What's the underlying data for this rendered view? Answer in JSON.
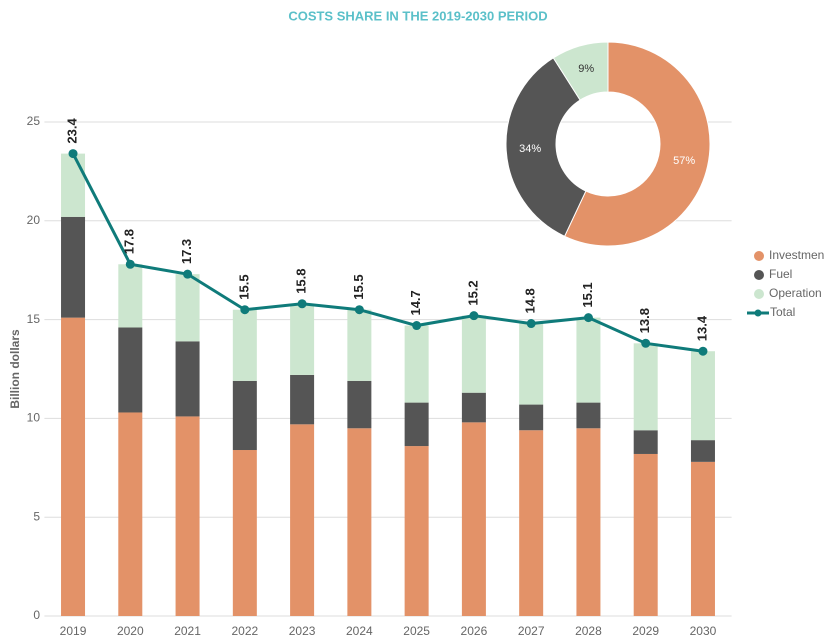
{
  "chart_data": [
    {
      "type": "stacked_bar_line",
      "title": "COSTS SHARE IN THE 2019-2030 PERIOD",
      "y_label": "Billion dollars",
      "categories": [
        "2019",
        "2020",
        "2021",
        "2022",
        "2023",
        "2024",
        "2025",
        "2026",
        "2027",
        "2028",
        "2029",
        "2030"
      ],
      "series": [
        {
          "name": "Investmen",
          "color": "#e39268",
          "values": [
            15.1,
            10.3,
            10.1,
            8.4,
            9.7,
            9.5,
            8.6,
            9.8,
            9.4,
            9.5,
            8.2,
            7.8
          ]
        },
        {
          "name": "Fuel",
          "color": "#555555",
          "values": [
            5.1,
            4.3,
            3.8,
            3.5,
            2.5,
            2.4,
            2.2,
            1.5,
            1.3,
            1.3,
            1.2,
            1.1
          ]
        },
        {
          "name": "Operation",
          "color": "#cce6cf",
          "values": [
            3.2,
            3.2,
            3.4,
            3.6,
            3.6,
            3.6,
            3.9,
            3.9,
            4.1,
            4.3,
            4.4,
            4.5
          ]
        },
        {
          "name": "Total",
          "type": "line",
          "color": "#0f7b7a",
          "values": [
            23.4,
            17.8,
            17.3,
            15.5,
            15.8,
            15.5,
            14.7,
            15.2,
            14.8,
            15.1,
            13.8,
            13.4
          ]
        }
      ],
      "ylim": [
        0,
        25
      ],
      "yticks": [
        0,
        5,
        10,
        15,
        20,
        25
      ],
      "grid": true,
      "legend": "right"
    },
    {
      "type": "pie",
      "values": [
        57,
        34,
        9
      ],
      "value_labels": [
        "57%",
        "34%",
        "9%"
      ],
      "colors": [
        "#e39268",
        "#555555",
        "#cce6cf"
      ]
    }
  ]
}
